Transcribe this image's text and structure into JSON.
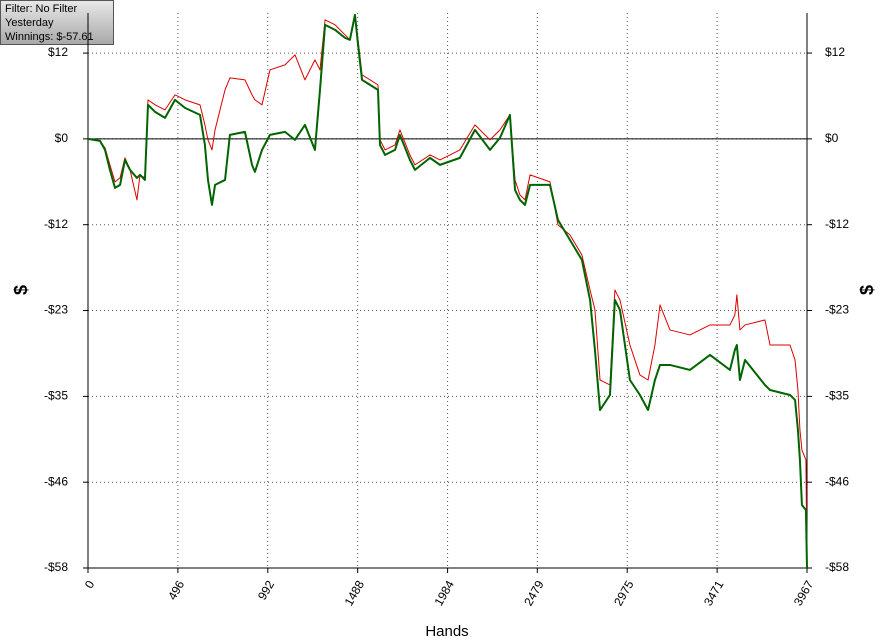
{
  "chart_data": {
    "type": "line",
    "info": [
      "Filter: No Filter",
      "Yesterday",
      "Winnings: $-57.61"
    ],
    "x_label": "Hands",
    "y_label": "$",
    "x": [
      0,
      66,
      94,
      121,
      149,
      177,
      204,
      232,
      270,
      287,
      314,
      331,
      370,
      425,
      480,
      535,
      618,
      645,
      662,
      684,
      701,
      756,
      783,
      866,
      905,
      921,
      960,
      1004,
      1087,
      1142,
      1197,
      1252,
      1280,
      1308,
      1363,
      1418,
      1445,
      1473,
      1490,
      1512,
      1600,
      1611,
      1639,
      1694,
      1721,
      1776,
      1804,
      1887,
      1942,
      2052,
      2135,
      2218,
      2273,
      2328,
      2356,
      2383,
      2411,
      2439,
      2549,
      2593,
      2659,
      2725,
      2770,
      2797,
      2825,
      2880,
      2907,
      2935,
      2990,
      3045,
      3090,
      3128,
      3156,
      3211,
      3321,
      3432,
      3542,
      3569,
      3580,
      3597,
      3625,
      3735,
      3763,
      3873,
      3901,
      3917,
      3928,
      3939,
      3961,
      3967
    ],
    "series": [
      {
        "color": "#dd0000",
        "width": 1,
        "values": [
          0,
          -0.27,
          -1.21,
          -3.49,
          -5.77,
          -5.24,
          -2.55,
          -4.16,
          -8.19,
          -4.83,
          -5.24,
          5.24,
          4.57,
          3.89,
          5.91,
          5.24,
          4.57,
          1.88,
          -0.13,
          -1.48,
          1.21,
          6.58,
          8.19,
          7.92,
          5.91,
          5.24,
          4.57,
          9.27,
          9.94,
          11.28,
          7.92,
          10.61,
          9.27,
          15.98,
          15.31,
          13.97,
          13.3,
          16.65,
          13.3,
          8.6,
          7.25,
          -0.13,
          -1.48,
          -0.81,
          1.21,
          -2.15,
          -3.49,
          -2.15,
          -2.82,
          -1.48,
          1.88,
          -0.13,
          1.21,
          3.22,
          -5.51,
          -7.52,
          -8.19,
          -4.83,
          -5.77,
          -11.55,
          -12.89,
          -15.58,
          -20.28,
          -22.96,
          -32.37,
          -33.04,
          -20.28,
          -21.62,
          -27.67,
          -31.69,
          -32.37,
          -27.67,
          -22.29,
          -25.65,
          -26.32,
          -24.98,
          -24.98,
          -23.64,
          -20.95,
          -25.65,
          -24.98,
          -24.31,
          -27.67,
          -27.67,
          -29.68,
          -33.71,
          -39.08,
          -41.77,
          -43.11,
          -57.61
        ]
      },
      {
        "color": "#006400",
        "width": 2,
        "values": [
          0,
          -0.27,
          -1.48,
          -4.16,
          -6.58,
          -6.18,
          -2.82,
          -4.16,
          -5.24,
          -4.83,
          -5.51,
          4.57,
          3.63,
          2.82,
          5.24,
          4.16,
          3.22,
          -0.81,
          -5.51,
          -8.86,
          -6.18,
          -5.51,
          0.54,
          0.94,
          -3.49,
          -4.43,
          -1.48,
          0.54,
          0.94,
          -0.13,
          1.88,
          -1.48,
          6.58,
          15.31,
          14.64,
          13.56,
          13.3,
          16.65,
          12.62,
          7.92,
          6.58,
          -0.81,
          -2.15,
          -1.48,
          0.54,
          -2.82,
          -4.16,
          -2.55,
          -3.49,
          -2.55,
          1.21,
          -1.48,
          0.13,
          3.22,
          -6.85,
          -8.19,
          -8.86,
          -6.18,
          -6.18,
          -10.88,
          -13.56,
          -16.25,
          -21.62,
          -28.34,
          -36.4,
          -34.38,
          -21.62,
          -22.96,
          -32.37,
          -34.38,
          -36.4,
          -32.37,
          -30.35,
          -30.35,
          -31.02,
          -29.01,
          -31.02,
          -28.34,
          -27.67,
          -32.37,
          -29.68,
          -33.04,
          -33.71,
          -34.38,
          -35.05,
          -39.08,
          -43.11,
          -49.15,
          -49.83,
          -57.61
        ]
      }
    ],
    "xlim": [
      0,
      3967
    ],
    "xticks": [
      0,
      496,
      992,
      1488,
      1984,
      2479,
      2975,
      3471,
      3967
    ],
    "ylim": [
      -57.61,
      16.9
    ],
    "yticks": [
      {
        "value": 11.52,
        "label": "$12"
      },
      {
        "value": 0,
        "label": "$0"
      },
      {
        "value": -11.52,
        "label": "-$12"
      },
      {
        "value": -23.04,
        "label": "-$23"
      },
      {
        "value": -34.57,
        "label": "-$35"
      },
      {
        "value": -46.09,
        "label": "-$46"
      },
      {
        "value": -57.61,
        "label": "-$58"
      }
    ],
    "grid": true
  }
}
